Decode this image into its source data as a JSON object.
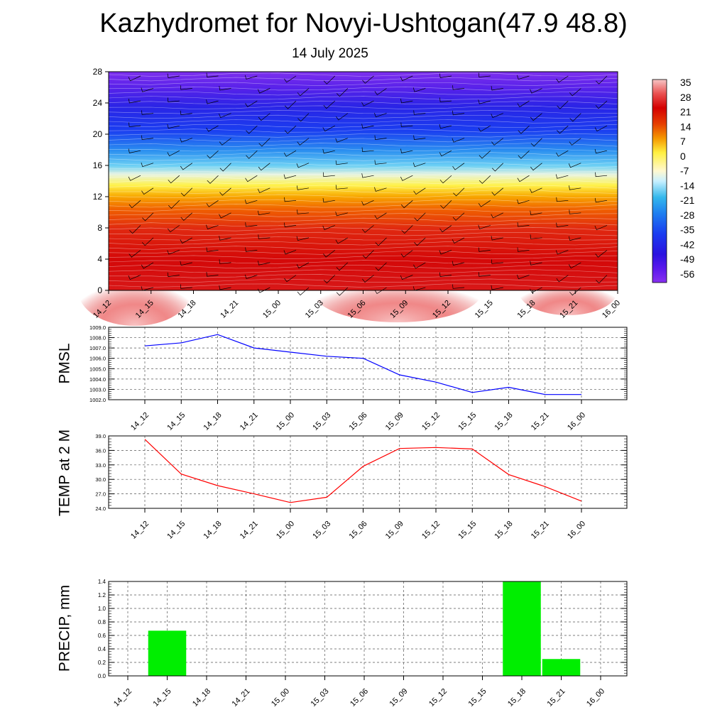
{
  "title": "Kazhydromet for Novyi-Ushtogan(47.9 48.8)",
  "subtitle": "14 July 2025",
  "time_labels": [
    "14_12",
    "14_15",
    "14_18",
    "14_21",
    "15_00",
    "15_03",
    "15_06",
    "15_09",
    "15_12",
    "15_15",
    "15_18",
    "15_21",
    "16_00"
  ],
  "colorbar": {
    "labels": [
      "35",
      "28",
      "21",
      "14",
      "7",
      "0",
      "-7",
      "-14",
      "-21",
      "-28",
      "-35",
      "-42",
      "-49",
      "-56"
    ],
    "colors": [
      "#f7c6c6",
      "#e03a3a",
      "#d40000",
      "#e84a00",
      "#f5a000",
      "#fff040",
      "#fff8d0",
      "#c8f0ff",
      "#34b8ec",
      "#1e7ef0",
      "#1a3cf0",
      "#2a12e0",
      "#5a18ec",
      "#8830f0"
    ]
  },
  "chart_data": [
    {
      "type": "heatmap",
      "title": "",
      "xlabel": "",
      "ylabel": "",
      "ylim": [
        0,
        28
      ],
      "yticks": [
        0,
        4,
        8,
        12,
        16,
        20,
        24,
        28
      ],
      "categories": [
        "14_12",
        "14_15",
        "14_18",
        "14_21",
        "15_00",
        "15_03",
        "15_06",
        "15_09",
        "15_12",
        "15_15",
        "15_18",
        "15_21",
        "16_00"
      ],
      "value_range": [
        -56,
        35
      ],
      "colorbar_ticks": [
        35,
        28,
        21,
        14,
        7,
        0,
        -7,
        -14,
        -21,
        -28,
        -35,
        -42,
        -49,
        -56
      ]
    },
    {
      "type": "line",
      "ylabel": "PMSL",
      "ylim": [
        1002.0,
        1009.0
      ],
      "yticks": [
        "1002.0",
        "1003.0",
        "1004.0",
        "1005.0",
        "1006.0",
        "1007.0",
        "1008.0",
        "1009.0"
      ],
      "categories": [
        "14_12",
        "14_15",
        "14_18",
        "14_21",
        "15_00",
        "15_03",
        "15_06",
        "15_09",
        "15_12",
        "15_15",
        "15_18",
        "15_21",
        "16_00"
      ],
      "values": [
        1007.2,
        1007.5,
        1008.3,
        1007.0,
        1006.6,
        1006.2,
        1006.0,
        1004.4,
        1003.7,
        1002.7,
        1003.2,
        1002.5,
        1002.5
      ],
      "color": "#0000ff",
      "grid": true
    },
    {
      "type": "line",
      "ylabel": "TEMP at 2 M",
      "ylim": [
        24.0,
        39.0
      ],
      "yticks": [
        "24.0",
        "27.0",
        "30.0",
        "33.0",
        "36.0",
        "39.0"
      ],
      "categories": [
        "14_12",
        "14_15",
        "14_18",
        "14_21",
        "15_00",
        "15_03",
        "15_06",
        "15_09",
        "15_12",
        "15_15",
        "15_18",
        "15_21",
        "16_00"
      ],
      "values": [
        38.3,
        31.1,
        28.7,
        27.0,
        25.2,
        26.3,
        32.7,
        36.4,
        36.6,
        36.3,
        31.0,
        28.5,
        25.5
      ],
      "color": "#ff0000",
      "grid": true
    },
    {
      "type": "bar",
      "ylabel": "PRECIP, mm",
      "ylim": [
        0.0,
        1.4
      ],
      "yticks": [
        "0.0",
        "0.2",
        "0.4",
        "0.6",
        "0.8",
        "1.0",
        "1.2",
        "1.4"
      ],
      "categories": [
        "14_12",
        "14_15",
        "14_18",
        "14_21",
        "15_00",
        "15_03",
        "15_06",
        "15_09",
        "15_12",
        "15_15",
        "15_18",
        "15_21",
        "16_00"
      ],
      "values": [
        0,
        0.67,
        0,
        0,
        0,
        0,
        0,
        0,
        0,
        0,
        1.4,
        0.25,
        0
      ],
      "color": "#00ee00",
      "grid": true
    }
  ]
}
